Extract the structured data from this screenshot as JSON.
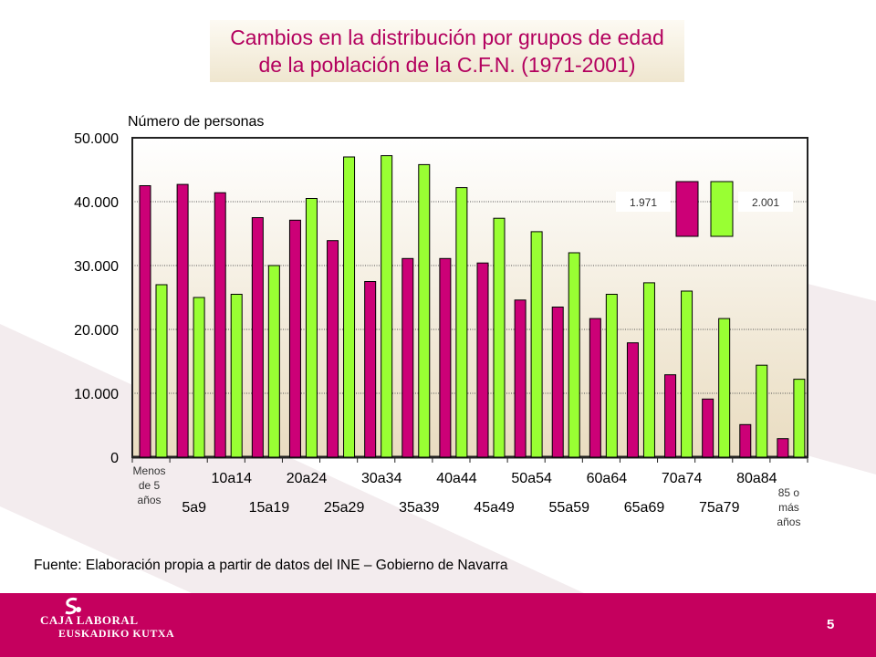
{
  "title": {
    "line1": "Cambios en la distribución por grupos de edad",
    "line2": "de la población de la C.F.N. (1971-2001)"
  },
  "chart_data": {
    "type": "bar",
    "ylabel": "Número de personas",
    "ylim": [
      0,
      50000
    ],
    "yticks": [
      0,
      10000,
      20000,
      30000,
      40000,
      50000
    ],
    "ytick_labels": [
      "0",
      "10.000",
      "20.000",
      "30.000",
      "40.000",
      "50.000"
    ],
    "categories": [
      "Menos de 5 años",
      "5a9",
      "10a14",
      "15a19",
      "20a24",
      "25a29",
      "30a34",
      "35a39",
      "40a44",
      "45a49",
      "50a54",
      "55a59",
      "60a64",
      "65a69",
      "70a74",
      "75a79",
      "80a84",
      "85 o más años"
    ],
    "series": [
      {
        "name": "1.971",
        "color": "#cc0077",
        "values": [
          42500,
          42700,
          41400,
          37500,
          37100,
          33900,
          27500,
          31100,
          31100,
          30400,
          24600,
          23500,
          21700,
          17900,
          12900,
          9100,
          5100,
          2900
        ]
      },
      {
        "name": "2.001",
        "color": "#99ff33",
        "values": [
          27000,
          25000,
          25500,
          30000,
          40500,
          47000,
          47200,
          45800,
          42200,
          37400,
          35300,
          32000,
          25500,
          27300,
          26000,
          21700,
          14400,
          12200
        ]
      }
    ],
    "legend_position": "top-right",
    "grid": true
  },
  "source": "Fuente: Elaboración propia a partir de datos del INE – Gobierno de Navarra",
  "footer": {
    "logo_line1": "CAJA LABORAL",
    "logo_line2": "EUSKADIKO KUTXA",
    "page_number": "5"
  },
  "colors": {
    "brand": "#c5005e",
    "title": "#b3005e",
    "series_1971": "#cc0077",
    "series_2001": "#99ff33"
  }
}
